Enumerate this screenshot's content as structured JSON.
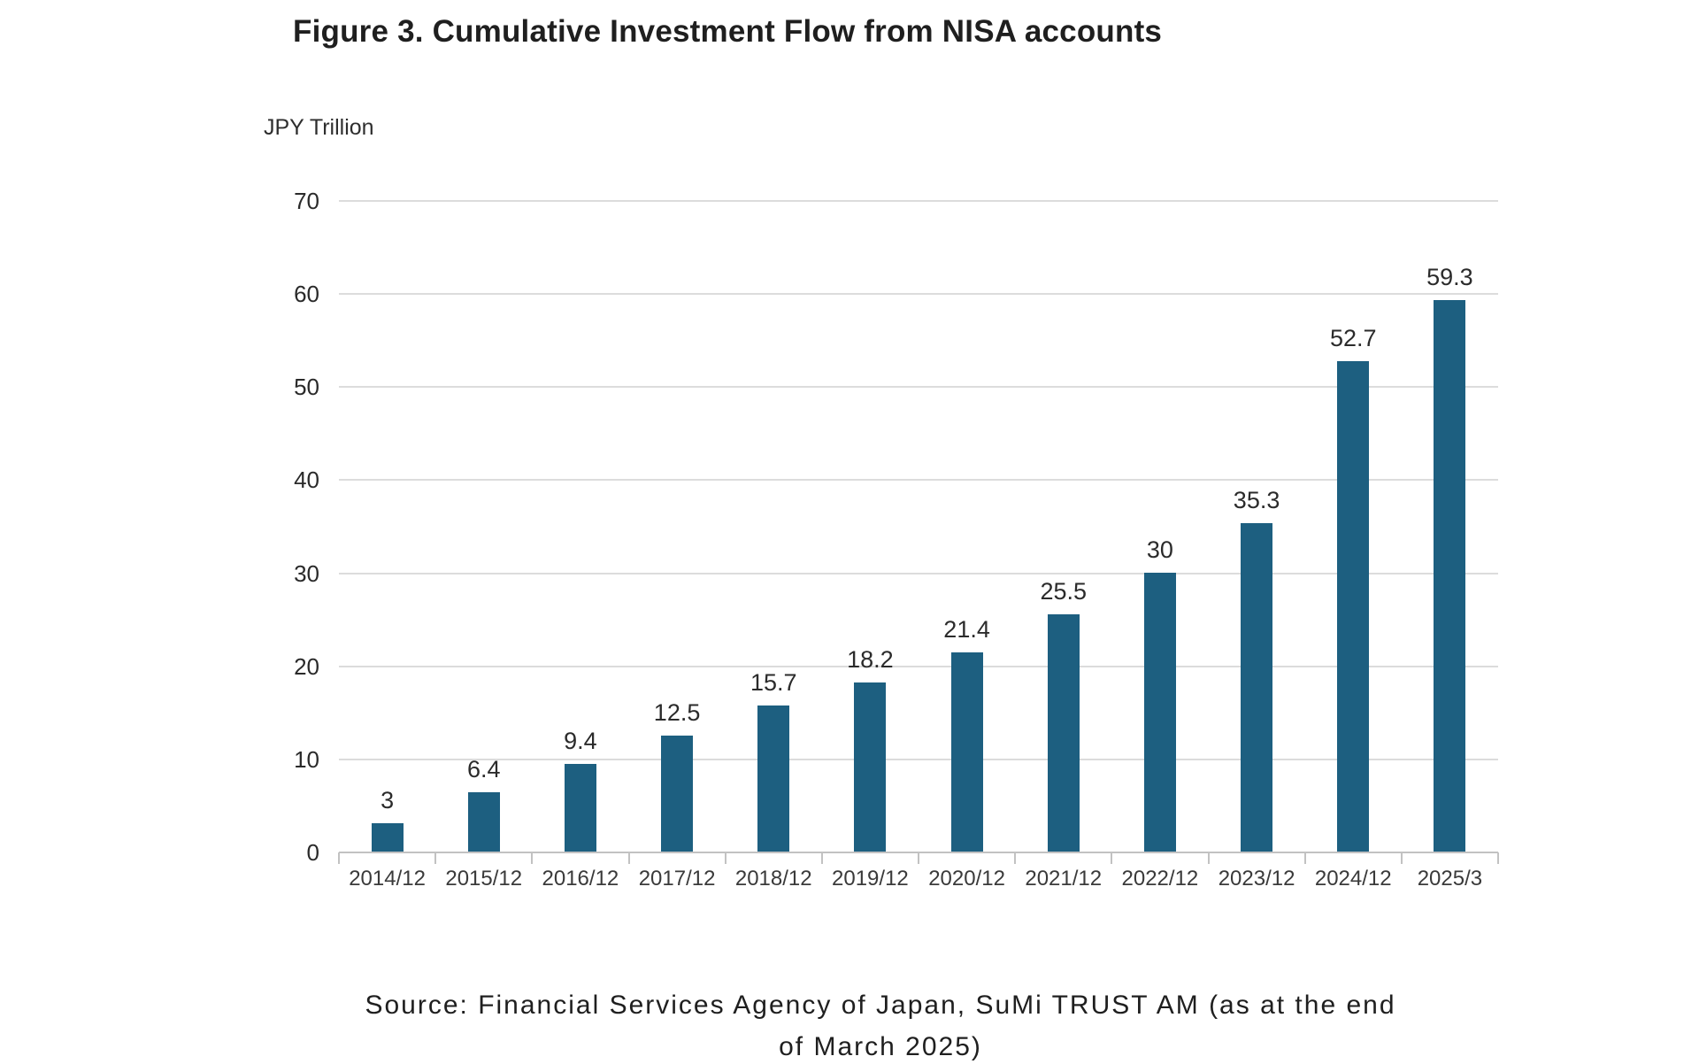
{
  "page": {
    "source": {
      "lines": [
        "Source: Financial Services Agency of Japan, SuMi TRUST AM (as at the end",
        "of March 2025)"
      ]
    }
  },
  "chart_data": {
    "type": "bar",
    "title": "Figure 3. Cumulative Investment Flow from NISA accounts",
    "unit_label": "JPY Trillion",
    "categories": [
      "2014/12",
      "2015/12",
      "2016/12",
      "2017/12",
      "2018/12",
      "2019/12",
      "2020/12",
      "2021/12",
      "2022/12",
      "2023/12",
      "2024/12",
      "2025/3"
    ],
    "values": [
      3,
      6.4,
      9.4,
      12.5,
      15.7,
      18.2,
      21.4,
      25.5,
      30,
      35.3,
      52.7,
      59.3
    ],
    "xlabel": "",
    "ylabel": "JPY Trillion",
    "ylim": [
      0,
      70
    ],
    "yticks": [
      0,
      10,
      20,
      30,
      40,
      50,
      60,
      70
    ],
    "grid": "horizontal",
    "legend": "none",
    "data_labels": "above-bars",
    "bar_color": "#1d5f80",
    "grid_color": "#dcdcdc",
    "axis_color": "#c2c2c2"
  }
}
